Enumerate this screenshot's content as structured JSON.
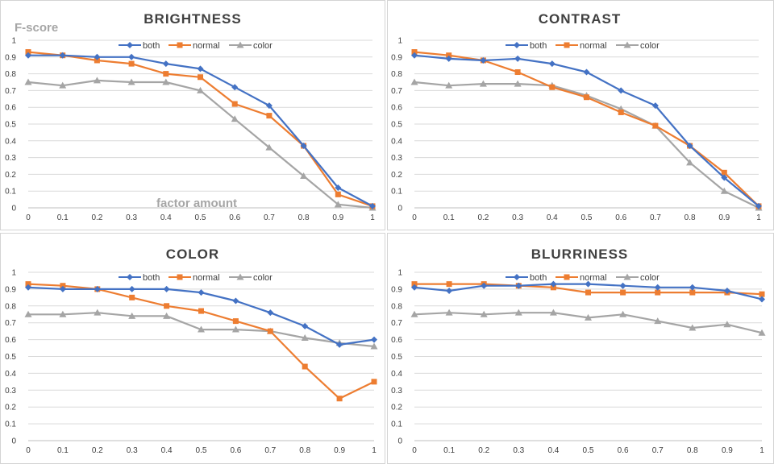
{
  "colors": {
    "both": "#4472C4",
    "normal": "#ED7D31",
    "color": "#A5A5A5"
  },
  "annotations": {
    "ylabel": "F-score",
    "xlabel": "factor amount"
  },
  "chart_data": [
    {
      "type": "line",
      "title": "BRIGHTNESS",
      "x": [
        0,
        0.1,
        0.2,
        0.3,
        0.4,
        0.5,
        0.6,
        0.7,
        0.8,
        0.9,
        1
      ],
      "x_tick_labels": [
        "0",
        "0.1",
        "0.2",
        "0.3",
        "0.4",
        "0.5",
        "0.6",
        "0.7",
        "0.8",
        "0.9",
        "1"
      ],
      "y_ticks": [
        0,
        0.1,
        0.2,
        0.3,
        0.4,
        0.5,
        0.6,
        0.7,
        0.8,
        0.9,
        1
      ],
      "y_tick_labels": [
        "0",
        "0.1",
        "0.2",
        "0.3",
        "0.4",
        "0.5",
        "0.6",
        "0.7",
        "0.8",
        "0.9",
        "1"
      ],
      "ylim": [
        0,
        1
      ],
      "grid": true,
      "legend": "top-center",
      "series": [
        {
          "name": "both",
          "marker": "diamond",
          "values": [
            0.91,
            0.91,
            0.9,
            0.9,
            0.86,
            0.83,
            0.72,
            0.61,
            0.37,
            0.12,
            0.01
          ]
        },
        {
          "name": "normal",
          "marker": "square",
          "values": [
            0.93,
            0.91,
            0.88,
            0.86,
            0.8,
            0.78,
            0.62,
            0.55,
            0.37,
            0.08,
            0.01
          ]
        },
        {
          "name": "color",
          "marker": "triangle",
          "values": [
            0.75,
            0.73,
            0.76,
            0.75,
            0.75,
            0.7,
            0.53,
            0.36,
            0.19,
            0.02,
            0.0
          ]
        }
      ]
    },
    {
      "type": "line",
      "title": "CONTRAST",
      "x": [
        0,
        0.1,
        0.2,
        0.3,
        0.4,
        0.5,
        0.6,
        0.7,
        0.8,
        0.9,
        1
      ],
      "x_tick_labels": [
        "0",
        "0.1",
        "0.2",
        "0.3",
        "0.4",
        "0.5",
        "0.6",
        "0.7",
        "0.8",
        "0.9",
        "1"
      ],
      "y_ticks": [
        0,
        0.1,
        0.2,
        0.3,
        0.4,
        0.5,
        0.6,
        0.7,
        0.8,
        0.9,
        1
      ],
      "y_tick_labels": [
        "0",
        "0.1",
        "0.2",
        "0.3",
        "0.4",
        "0.5",
        "0.6",
        "0.7",
        "0.8",
        "0.9",
        "1"
      ],
      "ylim": [
        0,
        1
      ],
      "grid": true,
      "legend": "top-center",
      "series": [
        {
          "name": "both",
          "marker": "diamond",
          "values": [
            0.91,
            0.89,
            0.88,
            0.89,
            0.86,
            0.81,
            0.7,
            0.61,
            0.37,
            0.18,
            0.01
          ]
        },
        {
          "name": "normal",
          "marker": "square",
          "values": [
            0.93,
            0.91,
            0.88,
            0.81,
            0.72,
            0.66,
            0.57,
            0.49,
            0.37,
            0.21,
            0.01
          ]
        },
        {
          "name": "color",
          "marker": "triangle",
          "values": [
            0.75,
            0.73,
            0.74,
            0.74,
            0.73,
            0.67,
            0.59,
            0.49,
            0.27,
            0.1,
            0.0
          ]
        }
      ]
    },
    {
      "type": "line",
      "title": "COLOR",
      "x": [
        0,
        0.1,
        0.2,
        0.3,
        0.4,
        0.5,
        0.6,
        0.7,
        0.8,
        0.9,
        1
      ],
      "x_tick_labels": [
        "0",
        "0.1",
        "0.2",
        "0.3",
        "0.4",
        "0.5",
        "0.6",
        "0.7",
        "0.8",
        "0.9",
        "1"
      ],
      "y_ticks": [
        0,
        0.1,
        0.2,
        0.3,
        0.4,
        0.5,
        0.6,
        0.7,
        0.8,
        0.9,
        1
      ],
      "y_tick_labels": [
        "0",
        "0.1",
        "0.2",
        "0.3",
        "0.4",
        "0.5",
        "0.6",
        "0.7",
        "0.8",
        "0.9",
        "1"
      ],
      "ylim": [
        0,
        1
      ],
      "grid": true,
      "legend": "top-center",
      "series": [
        {
          "name": "both",
          "marker": "diamond",
          "values": [
            0.91,
            0.9,
            0.9,
            0.9,
            0.9,
            0.88,
            0.83,
            0.76,
            0.68,
            0.57,
            0.6
          ]
        },
        {
          "name": "normal",
          "marker": "square",
          "values": [
            0.93,
            0.92,
            0.9,
            0.85,
            0.8,
            0.77,
            0.71,
            0.65,
            0.44,
            0.25,
            0.35
          ]
        },
        {
          "name": "color",
          "marker": "triangle",
          "values": [
            0.75,
            0.75,
            0.76,
            0.74,
            0.74,
            0.66,
            0.66,
            0.65,
            0.61,
            0.58,
            0.56
          ]
        }
      ]
    },
    {
      "type": "line",
      "title": "BLURRINESS",
      "x": [
        0,
        0.1,
        0.2,
        0.3,
        0.4,
        0.5,
        0.6,
        0.7,
        0.8,
        0.9,
        1
      ],
      "x_tick_labels": [
        "0",
        "0.1",
        "0.2",
        "0.3",
        "0.4",
        "0.5",
        "0.6",
        "0.7",
        "0.8",
        "0.9",
        "1"
      ],
      "y_ticks": [
        0,
        0.1,
        0.2,
        0.3,
        0.4,
        0.5,
        0.6,
        0.7,
        0.8,
        0.9,
        1
      ],
      "y_tick_labels": [
        "0",
        "0.1",
        "0.2",
        "0.3",
        "0.4",
        "0.5",
        "0.6",
        "0.7",
        "0.8",
        "0.9",
        "1"
      ],
      "ylim": [
        0,
        1
      ],
      "grid": true,
      "legend": "top-center",
      "series": [
        {
          "name": "both",
          "marker": "diamond",
          "values": [
            0.91,
            0.89,
            0.92,
            0.92,
            0.93,
            0.93,
            0.92,
            0.91,
            0.91,
            0.89,
            0.84
          ]
        },
        {
          "name": "normal",
          "marker": "square",
          "values": [
            0.93,
            0.93,
            0.93,
            0.92,
            0.91,
            0.88,
            0.88,
            0.88,
            0.88,
            0.88,
            0.87
          ]
        },
        {
          "name": "color",
          "marker": "triangle",
          "values": [
            0.75,
            0.76,
            0.75,
            0.76,
            0.76,
            0.73,
            0.75,
            0.71,
            0.67,
            0.69,
            0.64
          ]
        }
      ]
    }
  ]
}
